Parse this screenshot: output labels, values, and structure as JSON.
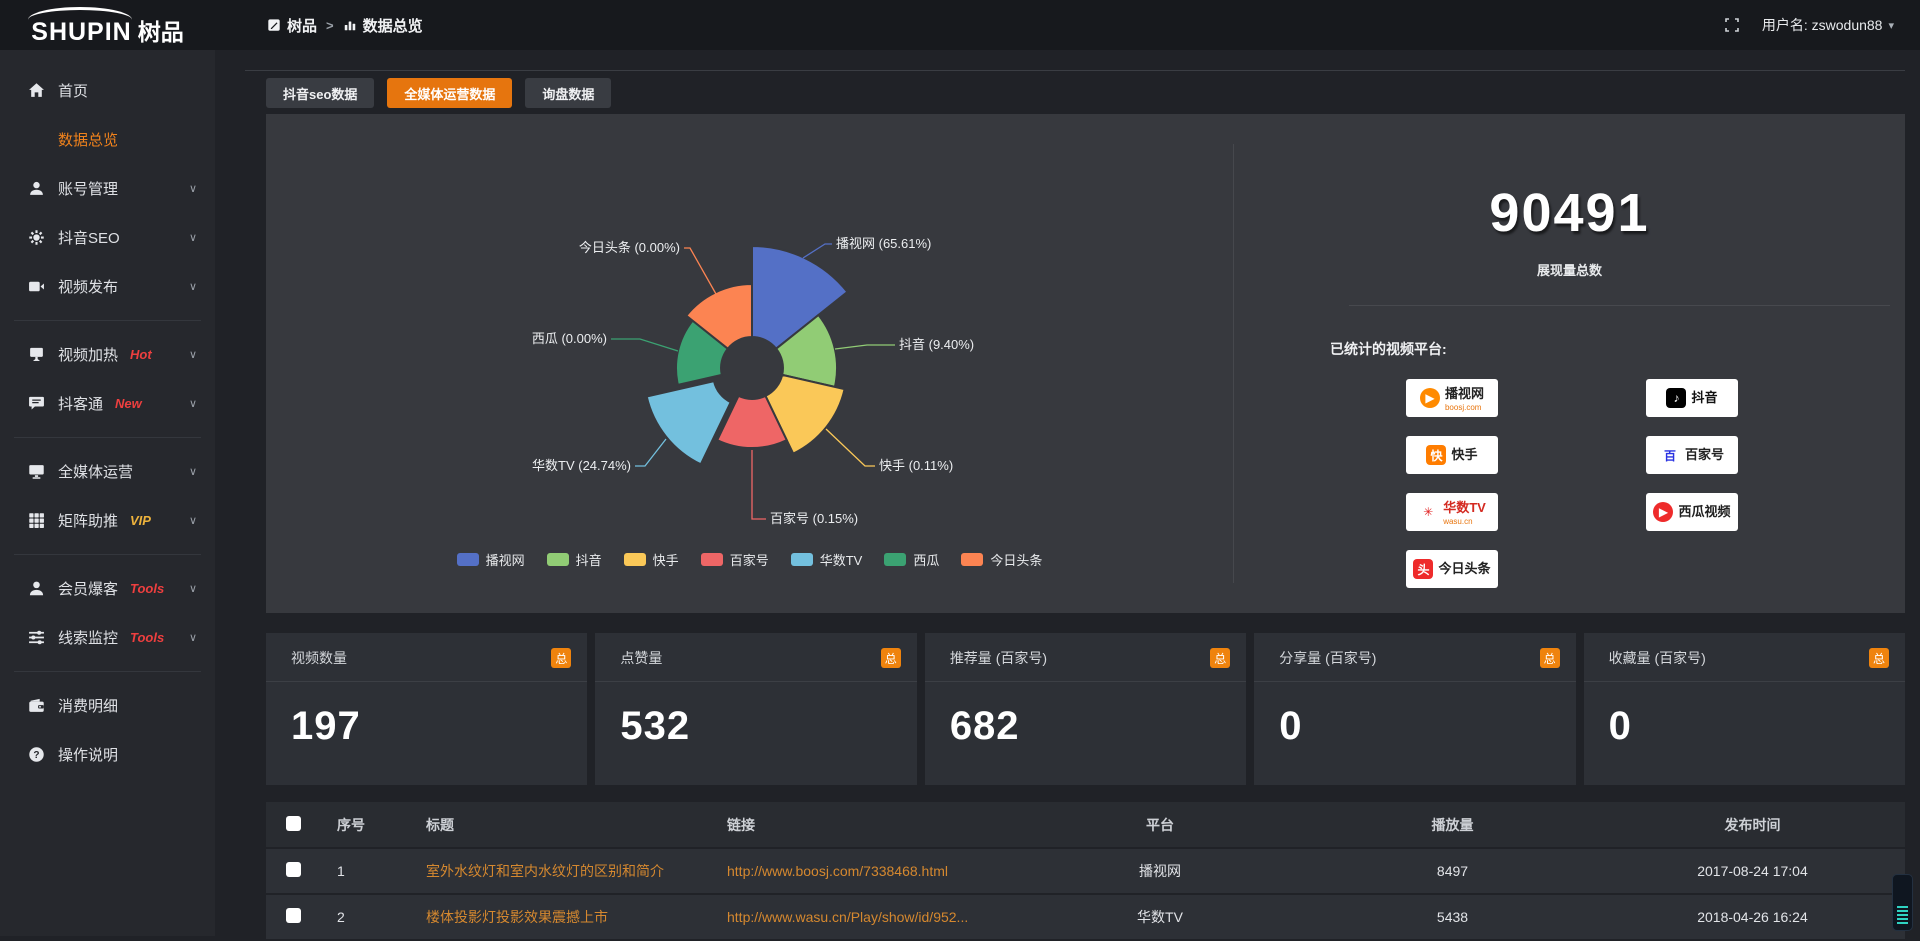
{
  "topbar": {
    "logo_en": "SHUPIN",
    "logo_cn": "树品",
    "breadcrumb": [
      {
        "label": "树品"
      },
      {
        "label": "数据总览"
      }
    ],
    "username": "用户名: zswodun88"
  },
  "sidebar": {
    "items": [
      {
        "label": "首页",
        "icon": "home-icon"
      },
      {
        "label": "数据总览",
        "icon": "bar-chart-icon",
        "active": true
      },
      {
        "label": "账号管理",
        "icon": "user-icon",
        "chevron": true
      },
      {
        "label": "抖音SEO",
        "icon": "gear-icon",
        "chevron": true
      },
      {
        "label": "视频发布",
        "icon": "video-icon",
        "chevron": true
      },
      {
        "divider": true
      },
      {
        "label": "视频加热",
        "icon": "screen-icon",
        "badge": "Hot",
        "badge_color": "#ee3f3f",
        "chevron": true
      },
      {
        "label": "抖客通",
        "icon": "chat-icon",
        "badge": "New",
        "badge_color": "#ee3f3f",
        "chevron": true
      },
      {
        "divider": true
      },
      {
        "label": "全媒体运营",
        "icon": "monitor-icon",
        "chevron": true
      },
      {
        "label": "矩阵助推",
        "icon": "grid-icon",
        "badge": "VIP",
        "badge_color": "#eeb33c",
        "chevron": true
      },
      {
        "divider": true
      },
      {
        "label": "会员爆客",
        "icon": "user-solid-icon",
        "badge": "Tools",
        "badge_color": "#ee3f3f",
        "chevron": true
      },
      {
        "label": "线索监控",
        "icon": "sliders-icon",
        "badge": "Tools",
        "badge_color": "#ee3f3f",
        "chevron": true
      },
      {
        "divider": true
      },
      {
        "label": "消费明细",
        "icon": "wallet-icon"
      },
      {
        "label": "操作说明",
        "icon": "question-icon"
      }
    ]
  },
  "tabs": [
    {
      "label": "抖音seo数据",
      "active": false
    },
    {
      "label": "全媒体运营数据",
      "active": true
    },
    {
      "label": "询盘数据",
      "active": false
    }
  ],
  "chart_data": {
    "type": "pie",
    "variant": "nightingale-rose",
    "slices": [
      {
        "name": "播视网",
        "percent": 65.61
      },
      {
        "name": "抖音",
        "percent": 9.4
      },
      {
        "name": "快手",
        "percent": 0.11
      },
      {
        "name": "百家号",
        "percent": 0.15
      },
      {
        "name": "华数TV",
        "percent": 24.74
      },
      {
        "name": "西瓜",
        "percent": 0.0
      },
      {
        "name": "今日头条",
        "percent": 0.0
      }
    ],
    "colors": [
      "#5470c6",
      "#91cc75",
      "#fac858",
      "#ee6666",
      "#73c0de",
      "#3ba272",
      "#fc8452"
    ],
    "legend": [
      "播视网",
      "抖音",
      "快手",
      "百家号",
      "华数TV",
      "西瓜",
      "今日头条"
    ],
    "legend_position": "bottom"
  },
  "summary": {
    "total": "90491",
    "total_label": "展现量总数",
    "platforms_label": "已统计的视频平台:",
    "platforms": [
      {
        "name": "播视网",
        "sub": "boosj.com",
        "logo": "boosj-icon",
        "logo_char": "▶",
        "logo_bg": "#ff8a00",
        "logo_color": "#ffffff",
        "name_color": "#222222",
        "shape": "round"
      },
      {
        "name": "快手",
        "logo": "kuaishou-icon",
        "logo_char": "快",
        "logo_bg": "#ff7d00",
        "logo_color": "#ffffff",
        "name_color": "#222222",
        "shape": "square"
      },
      {
        "name": "华数TV",
        "sub": "wasu.cn",
        "logo": "wasu-icon",
        "logo_char": "✳",
        "logo_bg": "#ffffff",
        "logo_color": "#e02020",
        "name_color": "#d42a21",
        "shape": "square"
      },
      {
        "name": "今日头条",
        "logo": "toutiao-icon",
        "logo_char": "头",
        "logo_bg": "#ee2b2b",
        "logo_color": "#ffffff",
        "name_color": "#222222",
        "shape": "square"
      },
      {
        "name": "抖音",
        "logo": "douyin-icon",
        "logo_char": "♪",
        "logo_bg": "#000000",
        "logo_color": "#ffffff",
        "name_color": "#111111",
        "shape": "square"
      },
      {
        "name": "百家号",
        "logo": "baijiahao-icon",
        "logo_char": "百",
        "logo_bg": "#ffffff",
        "logo_color": "#2932e1",
        "name_color": "#222222",
        "shape": "square"
      },
      {
        "name": "西瓜视频",
        "logo": "xigua-icon",
        "logo_char": "▶",
        "logo_bg": "#ee2b2b",
        "logo_color": "#ffffff",
        "name_color": "#222222",
        "shape": "round"
      }
    ]
  },
  "stat_cards": [
    {
      "title": "视频数量",
      "badge": "总",
      "value": "197"
    },
    {
      "title": "点赞量",
      "badge": "总",
      "value": "532"
    },
    {
      "title": "推荐量 (百家号)",
      "badge": "总",
      "value": "682"
    },
    {
      "title": "分享量 (百家号)",
      "badge": "总",
      "value": "0"
    },
    {
      "title": "收藏量 (百家号)",
      "badge": "总",
      "value": "0"
    }
  ],
  "table": {
    "headers": [
      "序号",
      "标题",
      "链接",
      "平台",
      "播放量",
      "发布时间"
    ],
    "rows": [
      {
        "num": "1",
        "title": "室外水纹灯和室内水纹灯的区别和简介",
        "link": "http://www.boosj.com/7338468.html",
        "platform": "播视网",
        "plays": "8497",
        "time": "2017-08-24 17:04"
      },
      {
        "num": "2",
        "title": "楼体投影灯投影效果震撼上市",
        "link": "http://www.wasu.cn/Play/show/id/952...",
        "platform": "华数TV",
        "plays": "5438",
        "time": "2018-04-26 16:24"
      }
    ]
  },
  "theme": {
    "accent_orange": "#e6750e",
    "badge_orange": "#ef830d",
    "link_orange": "#d5882f",
    "sidebar_active": "#f0821c"
  }
}
